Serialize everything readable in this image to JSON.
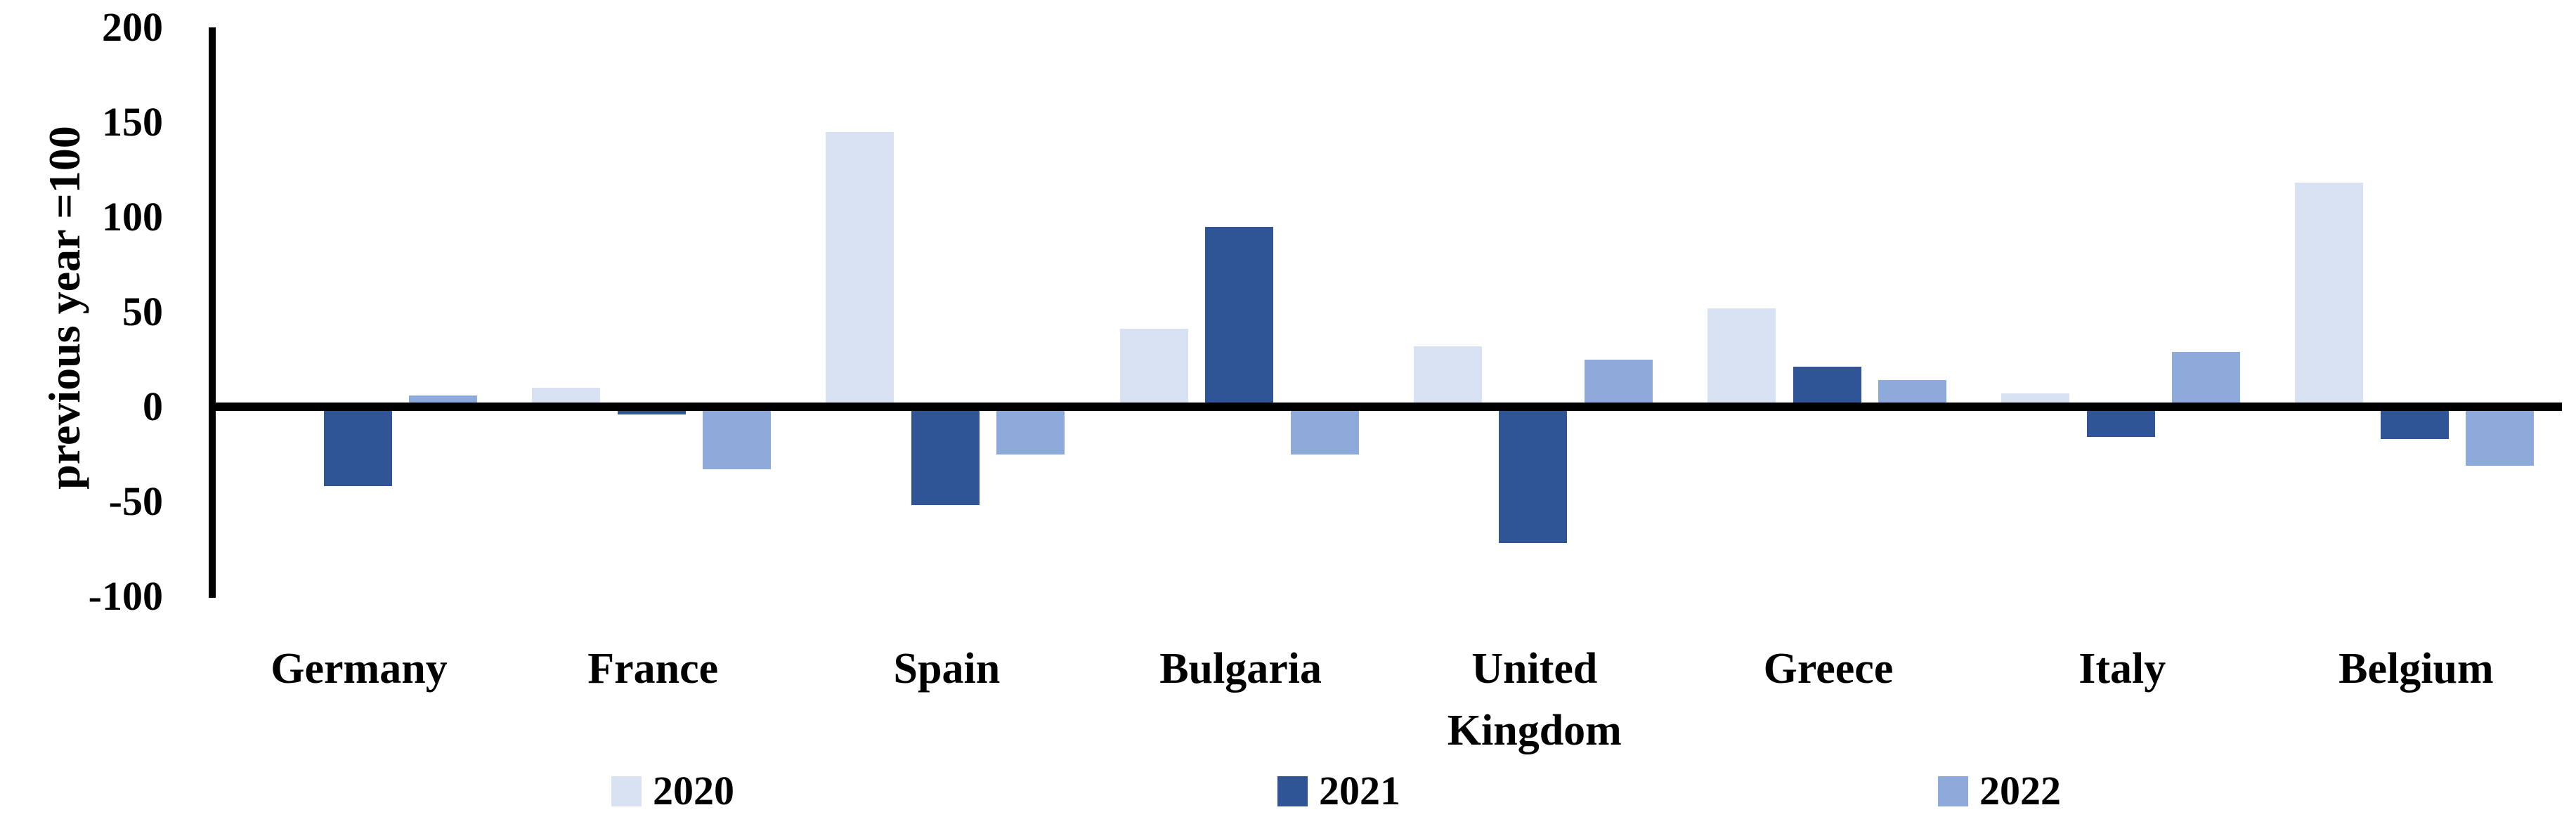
{
  "chart_data": {
    "type": "bar",
    "title": "",
    "ylabel": "previous year =100",
    "xlabel": "",
    "categories": [
      "Germany",
      "France",
      "Spain",
      "Bulgaria",
      "United Kingdom",
      "Greece",
      "Italy",
      "Belgium"
    ],
    "series": [
      {
        "name": "2020",
        "color": "#D9E2F3",
        "values": [
          0,
          10,
          145,
          41,
          32,
          52,
          7,
          118
        ]
      },
      {
        "name": "2021",
        "color": "#2F5597",
        "values": [
          -42,
          -4,
          -52,
          95,
          -72,
          21,
          -16,
          -17
        ]
      },
      {
        "name": "2022",
        "color": "#8EAADB",
        "values": [
          6,
          -33,
          -25,
          -25,
          25,
          14,
          29,
          -31
        ]
      }
    ],
    "ylim": [
      -100,
      200
    ],
    "yticks": [
      200,
      150,
      100,
      50,
      0,
      -50,
      -100
    ],
    "grid": false,
    "legend_position": "bottom",
    "axis_color": "#000000",
    "background_color": "#FFFFFF"
  }
}
